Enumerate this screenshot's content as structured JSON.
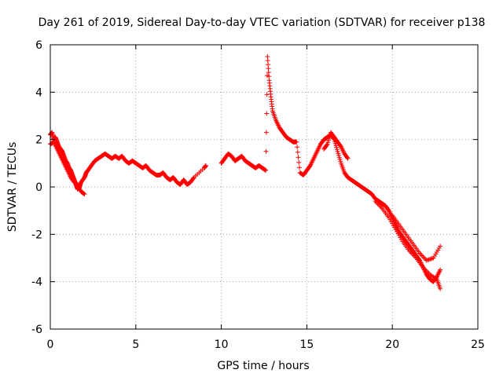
{
  "chart_data": {
    "type": "scatter",
    "title": "Day 261 of 2019, Sidereal Day-to-day VTEC variation (SDTVAR) for receiver p138",
    "xlabel": "GPS time / hours",
    "ylabel": "SDTVAR / TECUs",
    "xlim": [
      0,
      25
    ],
    "ylim": [
      -6,
      6
    ],
    "xticks": [
      "0",
      "5",
      "10",
      "15",
      "20",
      "25"
    ],
    "yticks": [
      "6",
      "4",
      "2",
      "0",
      "-2",
      "-4",
      "-6"
    ],
    "grid": true,
    "marker": "plus",
    "color": "#ff0000",
    "series": [
      {
        "name": "p138",
        "x": [
          0.0,
          0.1,
          0.2,
          0.3,
          0.4,
          0.5,
          0.6,
          0.7,
          0.8,
          0.9,
          1.0,
          1.1,
          1.2,
          1.3,
          1.4,
          1.5,
          1.6,
          1.7,
          1.8,
          2.0,
          2.1,
          2.2,
          2.4,
          2.6,
          2.8,
          3.0,
          3.2,
          3.4,
          3.6,
          3.8,
          4.0,
          4.2,
          4.4,
          4.6,
          4.8,
          5.0,
          5.2,
          5.4,
          5.6,
          5.8,
          6.0,
          6.2,
          6.4,
          6.6,
          6.8,
          7.0,
          7.2,
          7.4,
          7.6,
          7.8,
          8.0,
          8.2,
          8.4,
          9.0,
          9.1,
          10.0,
          10.2,
          10.4,
          10.6,
          10.8,
          11.0,
          11.2,
          11.4,
          11.6,
          11.8,
          12.0,
          12.2,
          12.4,
          12.6,
          12.7,
          12.8,
          12.9,
          13.0,
          13.2,
          13.4,
          13.6,
          13.8,
          14.0,
          14.2,
          14.4,
          14.6,
          14.8,
          15.0,
          15.2,
          15.4,
          15.6,
          15.8,
          16.0,
          16.2,
          16.4,
          16.6,
          16.8,
          17.0,
          17.2,
          17.4,
          17.6,
          17.8,
          18.0,
          18.2,
          18.4,
          18.6,
          18.8,
          19.0,
          19.2,
          19.4,
          19.6,
          19.8,
          20.0,
          20.2,
          20.4,
          20.6,
          20.8,
          21.0,
          21.2,
          21.4,
          21.6,
          21.8,
          22.0,
          22.2,
          22.4,
          22.6,
          22.8
        ],
        "y": [
          2.2,
          2.3,
          2.0,
          2.1,
          1.9,
          1.7,
          1.6,
          1.5,
          1.3,
          1.1,
          1.0,
          0.8,
          0.7,
          0.5,
          0.3,
          0.1,
          -0.1,
          0.0,
          0.2,
          0.4,
          0.6,
          0.7,
          0.9,
          1.1,
          1.2,
          1.3,
          1.4,
          1.3,
          1.2,
          1.3,
          1.2,
          1.3,
          1.1,
          1.0,
          1.1,
          1.0,
          0.9,
          0.8,
          0.9,
          0.7,
          0.6,
          0.5,
          0.5,
          0.6,
          0.4,
          0.3,
          0.4,
          0.2,
          0.1,
          0.3,
          0.1,
          0.2,
          0.4,
          0.8,
          0.9,
          1.0,
          1.2,
          1.4,
          1.3,
          1.1,
          1.2,
          1.3,
          1.1,
          1.0,
          0.9,
          0.8,
          0.9,
          0.8,
          0.7,
          5.5,
          4.5,
          3.8,
          3.2,
          2.8,
          2.5,
          2.3,
          2.1,
          2.0,
          1.9,
          1.9,
          0.6,
          0.5,
          0.7,
          0.9,
          1.2,
          1.5,
          1.8,
          2.0,
          2.1,
          2.2,
          2.0,
          1.5,
          1.0,
          0.6,
          0.4,
          0.3,
          0.2,
          0.1,
          0.0,
          -0.1,
          -0.2,
          -0.3,
          -0.5,
          -0.6,
          -0.7,
          -0.8,
          -1.0,
          -1.3,
          -1.6,
          -1.9,
          -2.1,
          -2.3,
          -2.5,
          -2.7,
          -2.9,
          -3.1,
          -3.4,
          -3.7,
          -3.9,
          -4.0,
          -3.8,
          -3.5
        ],
        "extra_series": [
          {
            "x": [
              0.0,
              0.2,
              0.4,
              0.6,
              0.8,
              1.0,
              1.2,
              1.4,
              1.6,
              1.8,
              2.0
            ],
            "y": [
              1.8,
              1.9,
              1.6,
              1.3,
              1.0,
              0.7,
              0.4,
              0.2,
              0.1,
              -0.2,
              -0.3
            ]
          },
          {
            "x": [
              16.0,
              16.2,
              16.4,
              16.6,
              16.8,
              17.0,
              17.2,
              17.4
            ],
            "y": [
              1.6,
              1.8,
              2.3,
              2.1,
              1.9,
              1.7,
              1.4,
              1.2
            ]
          },
          {
            "x": [
              20.0,
              20.4,
              20.8,
              21.2,
              21.6,
              22.0,
              22.4,
              22.8
            ],
            "y": [
              -1.2,
              -1.6,
              -2.0,
              -2.4,
              -2.8,
              -3.1,
              -3.0,
              -2.5
            ]
          },
          {
            "x": [
              19.0,
              19.4,
              19.8,
              20.2,
              20.6,
              21.0,
              21.4,
              21.8,
              22.2,
              22.6,
              22.8
            ],
            "y": [
              -0.6,
              -0.9,
              -1.3,
              -1.8,
              -2.3,
              -2.7,
              -3.0,
              -3.4,
              -3.7,
              -3.9,
              -4.3
            ]
          }
        ]
      }
    ]
  }
}
